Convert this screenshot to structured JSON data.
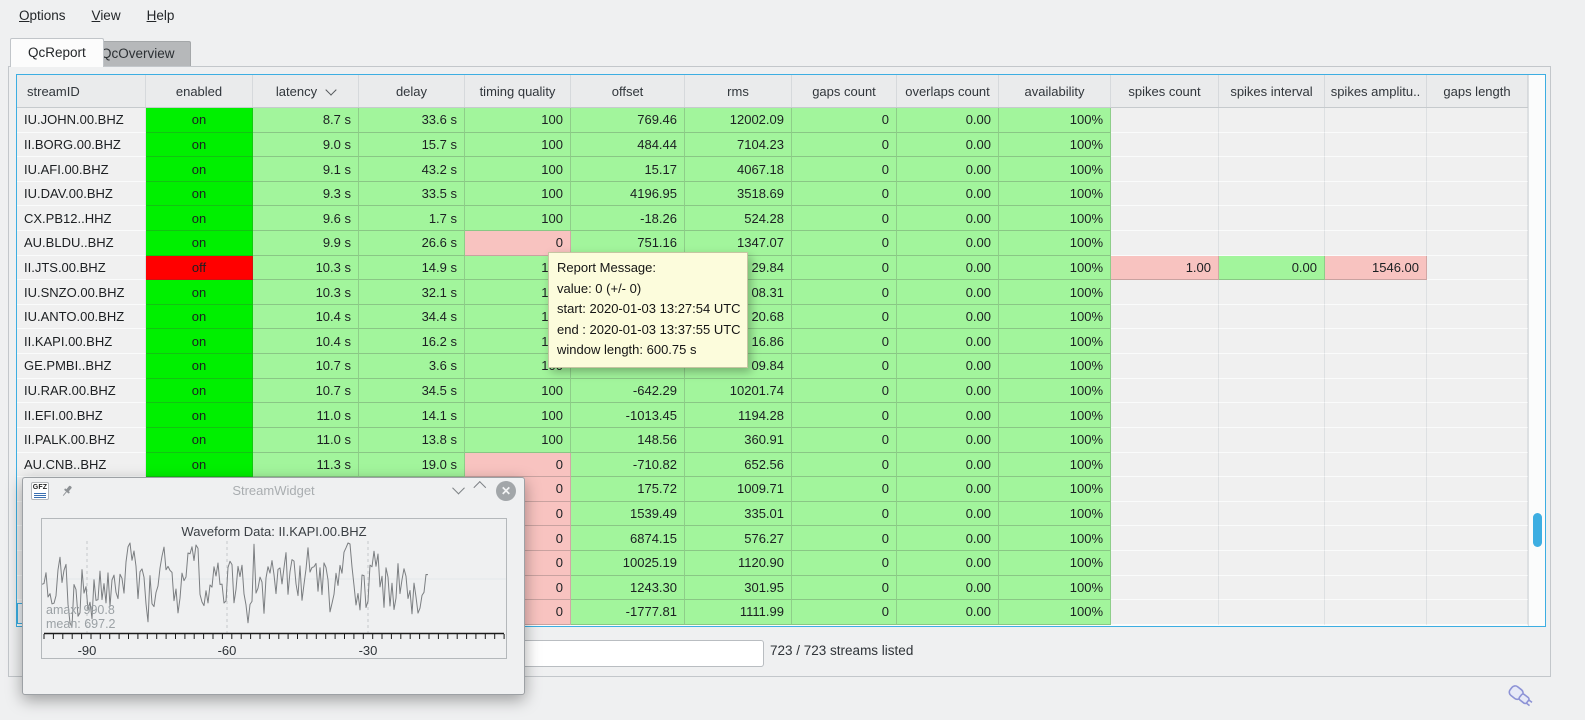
{
  "menu": {
    "items": [
      {
        "label": "Options"
      },
      {
        "label": "View"
      },
      {
        "label": "Help"
      }
    ]
  },
  "tabs": [
    {
      "label": "QcReport",
      "active": true
    },
    {
      "label": "QcOverview",
      "active": false
    }
  ],
  "table": {
    "columns": [
      {
        "label": "streamID"
      },
      {
        "label": "enabled"
      },
      {
        "label": "latency",
        "sort": "desc"
      },
      {
        "label": "delay"
      },
      {
        "label": "timing quality"
      },
      {
        "label": "offset"
      },
      {
        "label": "rms"
      },
      {
        "label": "gaps count"
      },
      {
        "label": "overlaps count"
      },
      {
        "label": "availability"
      },
      {
        "label": "spikes count"
      },
      {
        "label": "spikes interval"
      },
      {
        "label": "spikes amplitu.."
      },
      {
        "label": "gaps length"
      }
    ],
    "rows": [
      [
        [
          "IU.JOHN.00.BHZ",
          "id"
        ],
        [
          "on",
          "on"
        ],
        [
          "8.7 s",
          "g"
        ],
        [
          "33.6 s",
          "g"
        ],
        [
          "100",
          "g"
        ],
        [
          "769.46",
          "g"
        ],
        [
          "12002.09",
          "g"
        ],
        [
          "0",
          "g"
        ],
        [
          "0.00",
          "g"
        ],
        [
          "100%",
          "g"
        ],
        [
          "",
          "e"
        ],
        [
          "",
          "e"
        ],
        [
          "",
          "e"
        ],
        [
          "",
          "e"
        ]
      ],
      [
        [
          "II.BORG.00.BHZ",
          "id"
        ],
        [
          "on",
          "on"
        ],
        [
          "9.0 s",
          "g"
        ],
        [
          "15.7 s",
          "g"
        ],
        [
          "100",
          "g"
        ],
        [
          "484.44",
          "g"
        ],
        [
          "7104.23",
          "g"
        ],
        [
          "0",
          "g"
        ],
        [
          "0.00",
          "g"
        ],
        [
          "100%",
          "g"
        ],
        [
          "",
          "e"
        ],
        [
          "",
          "e"
        ],
        [
          "",
          "e"
        ],
        [
          "",
          "e"
        ]
      ],
      [
        [
          "IU.AFI.00.BHZ",
          "id"
        ],
        [
          "on",
          "on"
        ],
        [
          "9.1 s",
          "g"
        ],
        [
          "43.2 s",
          "g"
        ],
        [
          "100",
          "g"
        ],
        [
          "15.17",
          "g"
        ],
        [
          "4067.18",
          "g"
        ],
        [
          "0",
          "g"
        ],
        [
          "0.00",
          "g"
        ],
        [
          "100%",
          "g"
        ],
        [
          "",
          "e"
        ],
        [
          "",
          "e"
        ],
        [
          "",
          "e"
        ],
        [
          "",
          "e"
        ]
      ],
      [
        [
          "IU.DAV.00.BHZ",
          "id"
        ],
        [
          "on",
          "on"
        ],
        [
          "9.3 s",
          "g"
        ],
        [
          "33.5 s",
          "g"
        ],
        [
          "100",
          "g"
        ],
        [
          "4196.95",
          "g"
        ],
        [
          "3518.69",
          "g"
        ],
        [
          "0",
          "g"
        ],
        [
          "0.00",
          "g"
        ],
        [
          "100%",
          "g"
        ],
        [
          "",
          "e"
        ],
        [
          "",
          "e"
        ],
        [
          "",
          "e"
        ],
        [
          "",
          "e"
        ]
      ],
      [
        [
          "CX.PB12..HHZ",
          "id"
        ],
        [
          "on",
          "on"
        ],
        [
          "9.6 s",
          "g"
        ],
        [
          "1.7 s",
          "g"
        ],
        [
          "100",
          "g"
        ],
        [
          "-18.26",
          "g"
        ],
        [
          "524.28",
          "g"
        ],
        [
          "0",
          "g"
        ],
        [
          "0.00",
          "g"
        ],
        [
          "100%",
          "g"
        ],
        [
          "",
          "e"
        ],
        [
          "",
          "e"
        ],
        [
          "",
          "e"
        ],
        [
          "",
          "e"
        ]
      ],
      [
        [
          "AU.BLDU..BHZ",
          "id"
        ],
        [
          "on",
          "on"
        ],
        [
          "9.9 s",
          "g"
        ],
        [
          "26.6 s",
          "g"
        ],
        [
          "0",
          "p"
        ],
        [
          "751.16",
          "g"
        ],
        [
          "1347.07",
          "g"
        ],
        [
          "0",
          "g"
        ],
        [
          "0.00",
          "g"
        ],
        [
          "100%",
          "g"
        ],
        [
          "",
          "e"
        ],
        [
          "",
          "e"
        ],
        [
          "",
          "e"
        ],
        [
          "",
          "e"
        ]
      ],
      [
        [
          "II.JTS.00.BHZ",
          "id"
        ],
        [
          "off",
          "off"
        ],
        [
          "10.3 s",
          "g"
        ],
        [
          "14.9 s",
          "g"
        ],
        [
          "100",
          "g"
        ],
        [
          "",
          "g"
        ],
        [
          "29.84",
          "g"
        ],
        [
          "0",
          "g"
        ],
        [
          "0.00",
          "g"
        ],
        [
          "100%",
          "g"
        ],
        [
          "1.00",
          "p"
        ],
        [
          "0.00",
          "g"
        ],
        [
          "1546.00",
          "p"
        ],
        [
          "",
          "e"
        ]
      ],
      [
        [
          "IU.SNZO.00.BHZ",
          "id"
        ],
        [
          "on",
          "on"
        ],
        [
          "10.3 s",
          "g"
        ],
        [
          "32.1 s",
          "g"
        ],
        [
          "100",
          "g"
        ],
        [
          "",
          "g"
        ],
        [
          "08.31",
          "g"
        ],
        [
          "0",
          "g"
        ],
        [
          "0.00",
          "g"
        ],
        [
          "100%",
          "g"
        ],
        [
          "",
          "e"
        ],
        [
          "",
          "e"
        ],
        [
          "",
          "e"
        ],
        [
          "",
          "e"
        ]
      ],
      [
        [
          "IU.ANTO.00.BHZ",
          "id"
        ],
        [
          "on",
          "on"
        ],
        [
          "10.4 s",
          "g"
        ],
        [
          "34.4 s",
          "g"
        ],
        [
          "100",
          "g"
        ],
        [
          "",
          "g"
        ],
        [
          "20.68",
          "g"
        ],
        [
          "0",
          "g"
        ],
        [
          "0.00",
          "g"
        ],
        [
          "100%",
          "g"
        ],
        [
          "",
          "e"
        ],
        [
          "",
          "e"
        ],
        [
          "",
          "e"
        ],
        [
          "",
          "e"
        ]
      ],
      [
        [
          "II.KAPI.00.BHZ",
          "id"
        ],
        [
          "on",
          "on"
        ],
        [
          "10.4 s",
          "g"
        ],
        [
          "16.2 s",
          "g"
        ],
        [
          "100",
          "g"
        ],
        [
          "",
          "g"
        ],
        [
          "16.86",
          "g"
        ],
        [
          "0",
          "g"
        ],
        [
          "0.00",
          "g"
        ],
        [
          "100%",
          "g"
        ],
        [
          "",
          "e"
        ],
        [
          "",
          "e"
        ],
        [
          "",
          "e"
        ],
        [
          "",
          "e"
        ]
      ],
      [
        [
          "GE.PMBI..BHZ",
          "id"
        ],
        [
          "on",
          "on"
        ],
        [
          "10.7 s",
          "g"
        ],
        [
          "3.6 s",
          "g"
        ],
        [
          "100",
          "g"
        ],
        [
          "",
          "g"
        ],
        [
          "09.84",
          "g"
        ],
        [
          "0",
          "g"
        ],
        [
          "0.00",
          "g"
        ],
        [
          "100%",
          "g"
        ],
        [
          "",
          "e"
        ],
        [
          "",
          "e"
        ],
        [
          "",
          "e"
        ],
        [
          "",
          "e"
        ]
      ],
      [
        [
          "IU.RAR.00.BHZ",
          "id"
        ],
        [
          "on",
          "on"
        ],
        [
          "10.7 s",
          "g"
        ],
        [
          "34.5 s",
          "g"
        ],
        [
          "100",
          "g"
        ],
        [
          "-642.29",
          "g"
        ],
        [
          "10201.74",
          "g"
        ],
        [
          "0",
          "g"
        ],
        [
          "0.00",
          "g"
        ],
        [
          "100%",
          "g"
        ],
        [
          "",
          "e"
        ],
        [
          "",
          "e"
        ],
        [
          "",
          "e"
        ],
        [
          "",
          "e"
        ]
      ],
      [
        [
          "II.EFI.00.BHZ",
          "id"
        ],
        [
          "on",
          "on"
        ],
        [
          "11.0 s",
          "g"
        ],
        [
          "14.1 s",
          "g"
        ],
        [
          "100",
          "g"
        ],
        [
          "-1013.45",
          "g"
        ],
        [
          "1194.28",
          "g"
        ],
        [
          "0",
          "g"
        ],
        [
          "0.00",
          "g"
        ],
        [
          "100%",
          "g"
        ],
        [
          "",
          "e"
        ],
        [
          "",
          "e"
        ],
        [
          "",
          "e"
        ],
        [
          "",
          "e"
        ]
      ],
      [
        [
          "II.PALK.00.BHZ",
          "id"
        ],
        [
          "on",
          "on"
        ],
        [
          "11.0 s",
          "g"
        ],
        [
          "13.8 s",
          "g"
        ],
        [
          "100",
          "g"
        ],
        [
          "148.56",
          "g"
        ],
        [
          "360.91",
          "g"
        ],
        [
          "0",
          "g"
        ],
        [
          "0.00",
          "g"
        ],
        [
          "100%",
          "g"
        ],
        [
          "",
          "e"
        ],
        [
          "",
          "e"
        ],
        [
          "",
          "e"
        ],
        [
          "",
          "e"
        ]
      ],
      [
        [
          "AU.CNB..BHZ",
          "id"
        ],
        [
          "on",
          "on"
        ],
        [
          "11.3 s",
          "g"
        ],
        [
          "19.0 s",
          "g"
        ],
        [
          "0",
          "p"
        ],
        [
          "-710.82",
          "g"
        ],
        [
          "652.56",
          "g"
        ],
        [
          "0",
          "g"
        ],
        [
          "0.00",
          "g"
        ],
        [
          "100%",
          "g"
        ],
        [
          "",
          "e"
        ],
        [
          "",
          "e"
        ],
        [
          "",
          "e"
        ],
        [
          "",
          "e"
        ]
      ],
      [
        [
          "",
          "id"
        ],
        [
          "",
          "e"
        ],
        [
          "",
          "e"
        ],
        [
          "",
          "e"
        ],
        [
          "0",
          "p"
        ],
        [
          "175.72",
          "g"
        ],
        [
          "1009.71",
          "g"
        ],
        [
          "0",
          "g"
        ],
        [
          "0.00",
          "g"
        ],
        [
          "100%",
          "g"
        ],
        [
          "",
          "e"
        ],
        [
          "",
          "e"
        ],
        [
          "",
          "e"
        ],
        [
          "",
          "e"
        ]
      ],
      [
        [
          "",
          "id"
        ],
        [
          "",
          "e"
        ],
        [
          "",
          "e"
        ],
        [
          "",
          "e"
        ],
        [
          "0",
          "p"
        ],
        [
          "1539.49",
          "g"
        ],
        [
          "335.01",
          "g"
        ],
        [
          "0",
          "g"
        ],
        [
          "0.00",
          "g"
        ],
        [
          "100%",
          "g"
        ],
        [
          "",
          "e"
        ],
        [
          "",
          "e"
        ],
        [
          "",
          "e"
        ],
        [
          "",
          "e"
        ]
      ],
      [
        [
          "",
          "id"
        ],
        [
          "",
          "e"
        ],
        [
          "",
          "e"
        ],
        [
          "",
          "e"
        ],
        [
          "0",
          "p"
        ],
        [
          "6874.15",
          "g"
        ],
        [
          "576.27",
          "g"
        ],
        [
          "0",
          "g"
        ],
        [
          "0.00",
          "g"
        ],
        [
          "100%",
          "g"
        ],
        [
          "",
          "e"
        ],
        [
          "",
          "e"
        ],
        [
          "",
          "e"
        ],
        [
          "",
          "e"
        ]
      ],
      [
        [
          "",
          "id"
        ],
        [
          "",
          "e"
        ],
        [
          "",
          "e"
        ],
        [
          "",
          "e"
        ],
        [
          "0",
          "p"
        ],
        [
          "10025.19",
          "g"
        ],
        [
          "1120.90",
          "g"
        ],
        [
          "0",
          "g"
        ],
        [
          "0.00",
          "g"
        ],
        [
          "100%",
          "g"
        ],
        [
          "",
          "e"
        ],
        [
          "",
          "e"
        ],
        [
          "",
          "e"
        ],
        [
          "",
          "e"
        ]
      ],
      [
        [
          "",
          "id"
        ],
        [
          "",
          "e"
        ],
        [
          "",
          "e"
        ],
        [
          "",
          "e"
        ],
        [
          "0",
          "p"
        ],
        [
          "1243.30",
          "g"
        ],
        [
          "301.95",
          "g"
        ],
        [
          "0",
          "g"
        ],
        [
          "0.00",
          "g"
        ],
        [
          "100%",
          "g"
        ],
        [
          "",
          "e"
        ],
        [
          "",
          "e"
        ],
        [
          "",
          "e"
        ],
        [
          "",
          "e"
        ]
      ],
      [
        [
          "",
          "id"
        ],
        [
          "",
          "e"
        ],
        [
          "",
          "e"
        ],
        [
          "",
          "e"
        ],
        [
          "0",
          "p"
        ],
        [
          "-1777.81",
          "g"
        ],
        [
          "1111.99",
          "g"
        ],
        [
          "0",
          "g"
        ],
        [
          "0.00",
          "g"
        ],
        [
          "100%",
          "g"
        ],
        [
          "",
          "e"
        ],
        [
          "",
          "e"
        ],
        [
          "",
          "e"
        ],
        [
          "",
          "e"
        ]
      ]
    ]
  },
  "tooltip": {
    "lines": [
      "Report Message:",
      "value: 0 (+/- 0)",
      "start: 2020-01-03 13:27:54 UTC",
      "end : 2020-01-03 13:37:55 UTC",
      "window length: 600.75 s"
    ]
  },
  "stream_widget": {
    "title": "StreamWidget",
    "plot_title": "Waveform Data: II.KAPI.00.BHZ",
    "amax_label": "amax: 990.8",
    "mean_label": "mean: 697.2",
    "x_ticks": [
      {
        "label": "-90",
        "x": 45
      },
      {
        "label": "-60",
        "x": 185
      },
      {
        "label": "-30",
        "x": 326
      }
    ]
  },
  "footer": {
    "filter_value": "",
    "status": "723 / 723 streams listed"
  },
  "colors": {
    "accent": "#3daee2",
    "enabled_on": "#00f000",
    "enabled_off": "#ff0000",
    "qc_good": "#a2f59c",
    "qc_bad": "#f8c3c0",
    "tooltip_bg": "#fcfcdc"
  }
}
